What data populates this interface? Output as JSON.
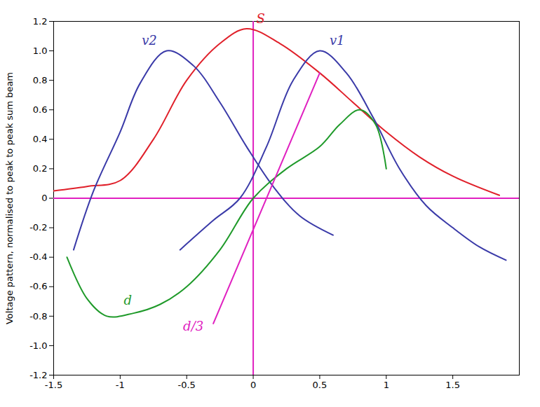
{
  "chart_data": {
    "type": "line",
    "y_label": "Voltage pattern, normalised to peak to peak sum beam",
    "xlim": [
      -1.5,
      2.0
    ],
    "xticks": [
      -1.5,
      -1,
      -0.5,
      0,
      0.5,
      1,
      1.5
    ],
    "ylim": [
      -1.2,
      1.2
    ],
    "yticks": [
      -1.2,
      {
        "value": -1,
        "label": "-1.0"
      },
      -0.8,
      -0.6,
      -0.4,
      -0.2,
      0,
      0.2,
      0.4,
      0.6,
      0.8,
      {
        "value": 1,
        "label": "1.0"
      },
      1.2
    ],
    "grid": false,
    "series": [
      {
        "name": "S",
        "color": "#e0202a",
        "line_style": "solid",
        "x": [
          -1.5,
          -1.25,
          -1.0,
          -0.75,
          -0.5,
          -0.25,
          -0.05,
          0.2,
          0.5,
          0.75,
          1.0,
          1.25,
          1.5,
          1.85
        ],
        "values": [
          0.05,
          0.08,
          0.12,
          0.4,
          0.8,
          1.05,
          1.15,
          1.05,
          0.85,
          0.65,
          0.45,
          0.28,
          0.15,
          0.02
        ]
      },
      {
        "name": "v2",
        "color": "#3a3aa8",
        "line_style": "solid",
        "x": [
          -1.35,
          -1.2,
          -1.0,
          -0.85,
          -0.65,
          -0.45,
          -0.25,
          -0.05,
          0.15,
          0.35,
          0.6
        ],
        "values": [
          -0.35,
          0.05,
          0.45,
          0.78,
          1.0,
          0.9,
          0.65,
          0.35,
          0.08,
          -0.12,
          -0.25
        ]
      },
      {
        "name": "v1",
        "color": "#3a3aa8",
        "line_style": "solid",
        "x": [
          -0.55,
          -0.3,
          -0.1,
          0.1,
          0.3,
          0.5,
          0.7,
          0.9,
          1.1,
          1.3,
          1.5,
          1.7,
          1.9
        ],
        "values": [
          -0.35,
          -0.15,
          0.0,
          0.35,
          0.8,
          1.0,
          0.85,
          0.55,
          0.2,
          -0.05,
          -0.2,
          -0.33,
          -0.42
        ]
      },
      {
        "name": "d",
        "color": "#1f9a2a",
        "line_style": "solid",
        "x": [
          -1.4,
          -1.25,
          -1.1,
          -0.9,
          -0.7,
          -0.5,
          -0.25,
          0.0,
          0.25,
          0.5,
          0.65,
          0.8,
          0.92,
          1.0
        ],
        "values": [
          -0.4,
          -0.68,
          -0.8,
          -0.78,
          -0.72,
          -0.6,
          -0.35,
          0.0,
          0.2,
          0.35,
          0.5,
          0.6,
          0.5,
          0.2
        ]
      },
      {
        "name": "d/3",
        "color": "#e020c0",
        "line_style": "solid",
        "x": [
          -0.3,
          0.5
        ],
        "values": [
          -0.85,
          0.85
        ]
      }
    ]
  }
}
